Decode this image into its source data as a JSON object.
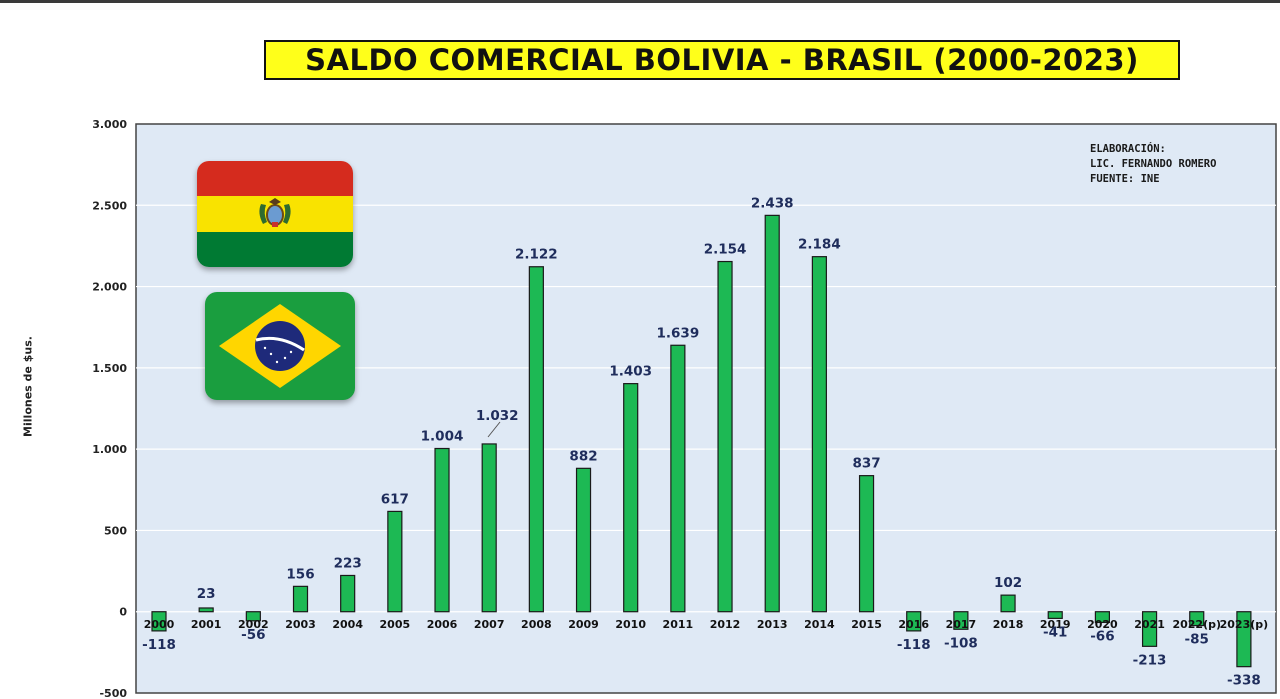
{
  "title": "SALDO COMERCIAL BOLIVIA - BRASIL (2000-2023)",
  "credit": {
    "line1": "ELABORACIÓN:",
    "line2": "LIC. FERNANDO ROMERO",
    "line3": "FUENTE: INE"
  },
  "flags": [
    "bolivia-flag",
    "brazil-flag"
  ],
  "colors": {
    "bar": "#1db954",
    "plot_bg": "#dfe9f5",
    "title_bg": "#ffff1a",
    "label": "#1f2d5c"
  },
  "chart_data": {
    "type": "bar",
    "title": "SALDO COMERCIAL BOLIVIA - BRASIL (2000-2023)",
    "xlabel": "",
    "ylabel": "Millones de $us.",
    "ylim": [
      -500,
      3000
    ],
    "yticks": [
      -500,
      0,
      500,
      1000,
      1500,
      2000,
      2500,
      3000
    ],
    "ytick_labels": [
      "-500",
      "0",
      "500",
      "1.000",
      "1.500",
      "2.000",
      "2.500",
      "3.000"
    ],
    "grid": true,
    "categories": [
      "2000",
      "2001",
      "2002",
      "2003",
      "2004",
      "2005",
      "2006",
      "2007",
      "2008",
      "2009",
      "2010",
      "2011",
      "2012",
      "2013",
      "2014",
      "2015",
      "2016",
      "2017",
      "2018",
      "2019",
      "2020",
      "2021",
      "2022(p)",
      "2023(p)"
    ],
    "values": [
      -118,
      23,
      -56,
      156,
      223,
      617,
      1004,
      1032,
      2122,
      882,
      1403,
      1639,
      2154,
      2438,
      2184,
      837,
      -118,
      -108,
      102,
      -41,
      -66,
      -213,
      -85,
      -338
    ],
    "value_labels": [
      "-118",
      "23",
      "-56",
      "156",
      "223",
      "617",
      "1.004",
      "1.032",
      "2.122",
      "882",
      "1.403",
      "1.639",
      "2.154",
      "2.438",
      "2.184",
      "837",
      "-118",
      "-108",
      "102",
      "-41",
      "-66",
      "-213",
      "-85",
      "-338"
    ]
  }
}
